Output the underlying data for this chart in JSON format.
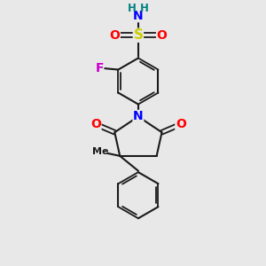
{
  "bg_color": "#e8e8e8",
  "bond_color": "#1a1a1a",
  "N_color": "#0000ff",
  "O_color": "#ff0000",
  "S_color": "#cccc00",
  "F_color": "#cc00cc",
  "H_color": "#008080",
  "figsize": [
    3.0,
    3.0
  ],
  "dpi": 100,
  "xlim": [
    0,
    10
  ],
  "ylim": [
    0,
    10
  ]
}
